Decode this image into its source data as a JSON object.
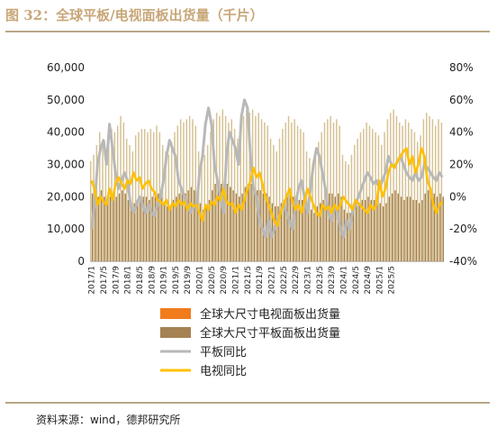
{
  "title": "图 32：全球平板/电视面板出货量（千片）",
  "source": "资料来源：wind，德邦研究所",
  "colors": {
    "tv_panel": "#e87f2c",
    "tablet_panel": "#a68152",
    "tablet_yoy": "#b8b8b8",
    "tv_yoy": "#ffc000",
    "legend_tv_box": "#f07c1c"
  },
  "chart_data": {
    "type": "bar",
    "y_left": {
      "min": 0,
      "max": 60000,
      "ticks": [
        "0",
        "10,000",
        "20,000",
        "30,000",
        "40,000",
        "50,000",
        "60,000"
      ]
    },
    "y_right": {
      "min": -40,
      "max": 80,
      "ticks": [
        "-40%",
        "-20%",
        "0%",
        "20%",
        "40%",
        "60%",
        "80%"
      ]
    },
    "x_tick_labels": [
      "2017/1",
      "2017/5",
      "2017/9",
      "2018/1",
      "2018/5",
      "2018/9",
      "2019/1",
      "2019/5",
      "2019/9",
      "2020/1",
      "2020/5",
      "2020/9",
      "2021/1",
      "2021/5",
      "2021/9",
      "2022/1",
      "2022/5",
      "2022/9",
      "2023/1",
      "2023/5",
      "2023/9",
      "2024/1",
      "2024/5",
      "2024/9",
      "2025/1",
      "2025/5"
    ],
    "series": [
      {
        "name": "全球大尺寸电视面板出货量",
        "axis": "left",
        "kind": "bar",
        "values": [
          31000,
          33000,
          36000,
          40000,
          37000,
          35000,
          38000,
          41000,
          40000,
          42000,
          45000,
          43000,
          38000,
          36000,
          34000,
          39000,
          40000,
          41000,
          41000,
          40000,
          41000,
          40000,
          42000,
          40000,
          36000,
          34000,
          33000,
          37000,
          40000,
          42000,
          44000,
          43000,
          44000,
          45000,
          44000,
          42000,
          34000,
          30000,
          33000,
          36000,
          40000,
          44000,
          46000,
          45000,
          47000,
          45000,
          43000,
          44000,
          41000,
          38000,
          40000,
          45000,
          47000,
          46000,
          47000,
          45000,
          46000,
          44000,
          43000,
          42000,
          38000,
          36000,
          34000,
          38000,
          41000,
          43000,
          45000,
          43000,
          44000,
          42000,
          41000,
          40000,
          34000,
          32000,
          30000,
          34000,
          37000,
          40000,
          43000,
          44000,
          45000,
          43000,
          44000,
          42000,
          33000,
          31000,
          30000,
          33000,
          36000,
          38000,
          40000,
          41000,
          43000,
          42000,
          41000,
          40000,
          39000,
          36000,
          40000,
          44000,
          46000,
          47000,
          45000,
          43000,
          42000,
          44000,
          43000,
          41000,
          40000,
          37000,
          39000,
          44000,
          46000,
          45000,
          44000,
          42000,
          44000,
          43000
        ]
      },
      {
        "name": "全球大尺寸平板面板出货量",
        "axis": "left",
        "kind": "bar",
        "values": [
          21000,
          19000,
          20000,
          22000,
          20000,
          19000,
          20000,
          21000,
          20000,
          21000,
          22000,
          21000,
          19000,
          18000,
          18000,
          19000,
          19000,
          20000,
          20000,
          19000,
          20000,
          20000,
          21000,
          20000,
          18000,
          17000,
          17000,
          19000,
          20000,
          21000,
          22000,
          21000,
          22000,
          23000,
          22000,
          21000,
          18000,
          16000,
          17000,
          19000,
          22000,
          24000,
          25000,
          24000,
          25000,
          24000,
          23000,
          22000,
          21000,
          20000,
          21000,
          23000,
          24000,
          24000,
          23000,
          22000,
          22000,
          21000,
          21000,
          20000,
          18000,
          17000,
          17000,
          18000,
          19000,
          20000,
          21000,
          20000,
          20000,
          19000,
          19000,
          18000,
          17000,
          16000,
          15000,
          17000,
          18000,
          19000,
          20000,
          21000,
          21000,
          20000,
          21000,
          20000,
          16000,
          15000,
          15000,
          16000,
          17000,
          18000,
          19000,
          19000,
          20000,
          19000,
          19000,
          18000,
          18000,
          17000,
          18000,
          20000,
          21000,
          22000,
          21000,
          20000,
          19000,
          20000,
          20000,
          19000,
          19000,
          18000,
          19000,
          21000,
          22000,
          21000,
          21000,
          20000,
          21000,
          20000
        ]
      },
      {
        "name": "平板同比",
        "axis": "right",
        "kind": "line",
        "values": [
          -20,
          -5,
          20,
          30,
          35,
          20,
          45,
          30,
          15,
          5,
          10,
          15,
          10,
          -5,
          -10,
          -5,
          0,
          -5,
          -10,
          -5,
          -10,
          -12,
          -5,
          0,
          10,
          25,
          35,
          30,
          25,
          10,
          5,
          0,
          -5,
          -10,
          -5,
          -8,
          15,
          25,
          45,
          55,
          45,
          20,
          10,
          0,
          -10,
          25,
          40,
          35,
          30,
          20,
          50,
          60,
          55,
          25,
          5,
          0,
          -15,
          -20,
          -25,
          -15,
          -25,
          -20,
          -15,
          -10,
          -5,
          -10,
          -15,
          -20,
          -5,
          5,
          10,
          0,
          -10,
          5,
          20,
          30,
          25,
          15,
          5,
          -10,
          -15,
          -5,
          -10,
          -20,
          -25,
          -15,
          -20,
          -10,
          -5,
          0,
          5,
          10,
          15,
          12,
          8,
          10,
          5,
          10,
          15,
          25,
          20,
          18,
          22,
          25,
          20,
          15,
          12,
          10,
          15,
          10,
          12,
          20,
          18,
          15,
          12,
          10,
          15,
          12
        ]
      },
      {
        "name": "电视同比",
        "axis": "right",
        "kind": "line",
        "values": [
          10,
          5,
          -5,
          0,
          -3,
          -5,
          5,
          -2,
          8,
          12,
          8,
          5,
          10,
          8,
          15,
          10,
          12,
          5,
          8,
          10,
          5,
          3,
          -2,
          -3,
          -5,
          -2,
          -8,
          -4,
          -6,
          -2,
          -5,
          -3,
          -8,
          -4,
          -6,
          -5,
          -10,
          -15,
          -5,
          -8,
          -3,
          -5,
          0,
          -2,
          5,
          -3,
          -5,
          -4,
          -10,
          -5,
          -8,
          -2,
          5,
          10,
          18,
          12,
          15,
          8,
          0,
          -5,
          -10,
          -15,
          -18,
          -10,
          -5,
          0,
          5,
          -3,
          -8,
          -5,
          -10,
          -3,
          5,
          0,
          -5,
          -10,
          -12,
          -5,
          -8,
          -6,
          -10,
          -5,
          -8,
          -5,
          0,
          -3,
          -5,
          -8,
          -2,
          -4,
          -6,
          -8,
          -10,
          -5,
          -8,
          -5,
          10,
          0,
          5,
          15,
          20,
          18,
          22,
          25,
          28,
          30,
          20,
          25,
          15,
          20,
          30,
          25,
          10,
          5,
          -5,
          -10,
          -5,
          -3
        ]
      }
    ]
  }
}
